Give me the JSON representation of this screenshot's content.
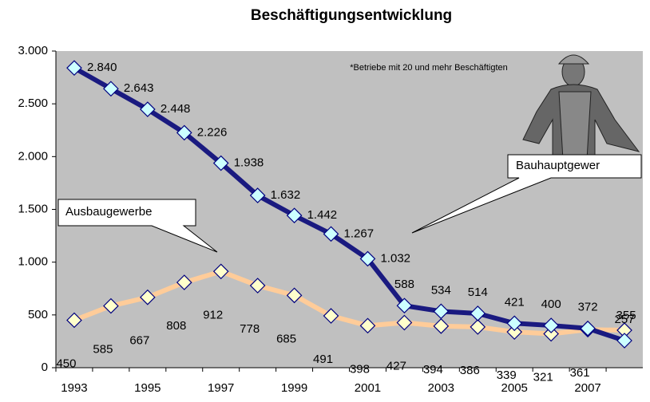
{
  "chart_data": {
    "type": "line",
    "title": "Beschäftigungsentwicklung",
    "annotation": "*Betriebe mit 20 und mehr Beschäftigten",
    "categories": [
      "1993",
      null,
      "1995",
      null,
      "1997",
      null,
      "1999",
      null,
      "2001",
      null,
      "2003",
      null,
      "2005",
      null,
      "2007",
      null
    ],
    "series": [
      {
        "name": "Ausbaugewerbe",
        "color": "#ffcc99",
        "marker_color": "#ffffcc",
        "values": [
          450,
          585,
          667,
          808,
          912,
          778,
          685,
          491,
          398,
          427,
          394,
          386,
          339,
          321,
          361,
          355
        ]
      },
      {
        "name": "Bauhauptgewer",
        "color": "#1a1a80",
        "marker_color": "#ccffff",
        "values": [
          2840,
          2643,
          2448,
          2226,
          1938,
          1632,
          1442,
          1267,
          1032,
          588,
          534,
          514,
          421,
          400,
          372,
          257
        ],
        "value_labels": [
          "2.840",
          "2.643",
          "2.448",
          "2.226",
          "1.938",
          "1.632",
          "1.442",
          "1.267",
          "1.032",
          "588",
          "534",
          "514",
          "421",
          "400",
          "372",
          "257"
        ]
      }
    ],
    "ylim": [
      0,
      3000
    ],
    "yticks": [
      0,
      {
        "value": 500,
        "label": "500"
      },
      {
        "value": 1000,
        "label": "1.000"
      },
      {
        "value": 1500,
        "label": "1.500"
      },
      {
        "value": 2000,
        "label": "2.000"
      },
      {
        "value": 2500,
        "label": "2.500"
      },
      {
        "value": 3000,
        "label": "3.000"
      }
    ],
    "plot_background": "#c0c0c0"
  }
}
